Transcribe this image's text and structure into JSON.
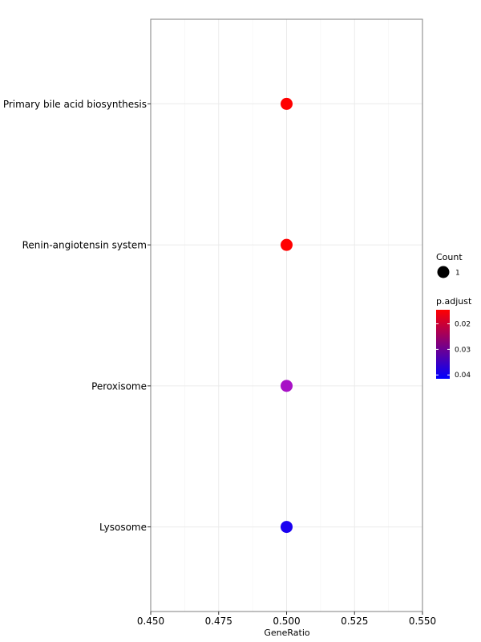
{
  "chart_data": {
    "type": "scatter",
    "xlabel": "GeneRatio",
    "ylabel": "",
    "xlim": [
      0.45,
      0.55
    ],
    "x_ticks": [
      "0.450",
      "0.475",
      "0.500",
      "0.525",
      "0.550"
    ],
    "x_tick_values": [
      0.45,
      0.475,
      0.5,
      0.525,
      0.55
    ],
    "grid": true,
    "categories": [
      "Primary bile acid biosynthesis",
      "Renin-angiotensin system",
      "Peroxisome",
      "Lysosome"
    ],
    "points": [
      {
        "term": "Primary bile acid biosynthesis",
        "x": 0.5,
        "count": 1,
        "color": "#ff0000"
      },
      {
        "term": "Renin-angiotensin system",
        "x": 0.5,
        "count": 1,
        "color": "#ff0000"
      },
      {
        "term": "Peroxisome",
        "x": 0.5,
        "count": 1,
        "color": "#a812c6"
      },
      {
        "term": "Lysosome",
        "x": 0.5,
        "count": 1,
        "color": "#1a00f0"
      }
    ],
    "legend": {
      "position": "right",
      "size": {
        "title": "Count",
        "labels": [
          "1"
        ]
      },
      "color": {
        "title": "p.adjust",
        "labels": [
          "0.02",
          "0.03",
          "0.04"
        ],
        "values": [
          0.02,
          0.03,
          0.04
        ],
        "range": [
          0.0145,
          0.0415
        ],
        "low_color": "#ff0000",
        "high_color": "#0000ff"
      }
    }
  }
}
